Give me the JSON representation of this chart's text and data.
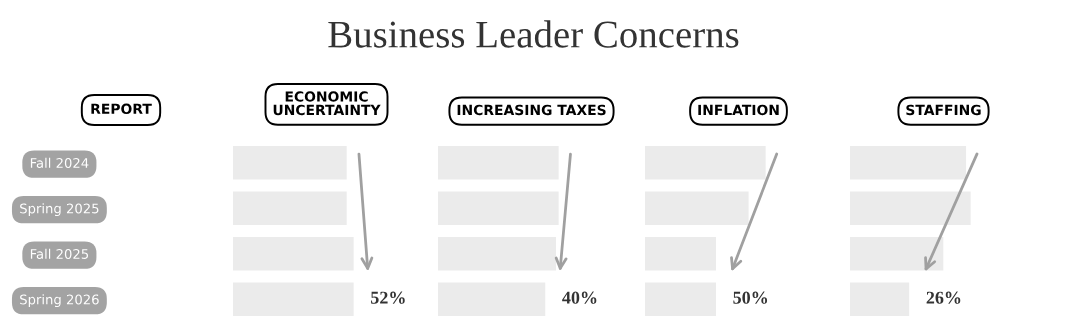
{
  "chart_data": [
    {
      "type": "bar",
      "orientation": "horizontal",
      "title": "ECONOMIC\nUNCERTAINTY",
      "ylabel": "REPORT",
      "categories": [
        "Fall 2024",
        "Spring 2025",
        "Fall 2025",
        "Spring 2026"
      ],
      "values": [
        49,
        49,
        52,
        52
      ],
      "value_labels": [
        null,
        null,
        null,
        "52%"
      ],
      "color": "#ebebeb",
      "tick_labels": "y",
      "grid": false,
      "legend": false,
      "annotations": [
        "Business Leader Concerns"
      ]
    },
    {
      "type": "bar",
      "orientation": "horizontal",
      "title": "INCREASING TAXES",
      "categories": [
        null,
        null,
        null,
        null
      ],
      "values": [
        45,
        45,
        44,
        40
      ],
      "value_labels": [
        null,
        null,
        null,
        "40%"
      ],
      "color": "#ebebeb",
      "tick_labels": false,
      "grid": false,
      "legend": false
    },
    {
      "type": "bar",
      "orientation": "horizontal",
      "title": "INFLATION",
      "categories": [
        null,
        null,
        null,
        null
      ],
      "values": [
        85,
        73,
        50,
        50
      ],
      "value_labels": [
        null,
        null,
        null,
        "50%"
      ],
      "color": "#ebebeb",
      "tick_labels": false,
      "grid": false,
      "legend": false
    },
    {
      "type": "bar",
      "orientation": "horizontal",
      "title": "STAFFING",
      "categories": [
        null,
        null,
        null,
        null
      ],
      "values": [
        51,
        53,
        41,
        26
      ],
      "value_labels": [
        null,
        null,
        null,
        "26%"
      ],
      "color": "#ebebeb",
      "tick_labels": false,
      "grid": false,
      "legend": false
    }
  ]
}
